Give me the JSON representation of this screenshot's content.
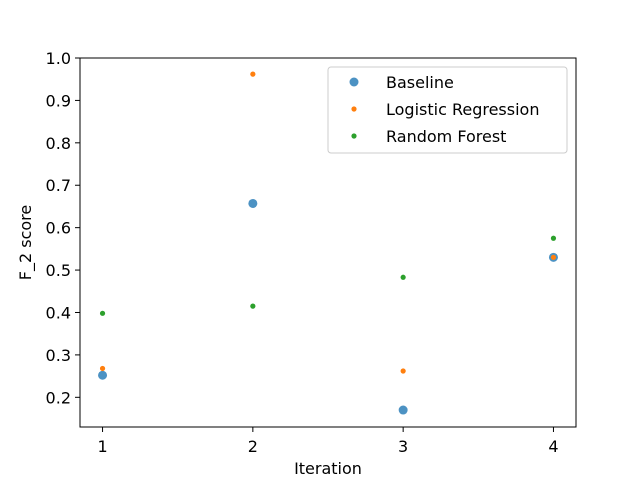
{
  "chart_data": {
    "type": "scatter",
    "xlabel": "Iteration",
    "ylabel": "F_2 score",
    "xlim": [
      0.85,
      4.15
    ],
    "ylim": [
      0.13,
      1.0
    ],
    "xticks": [
      1,
      2,
      3,
      4
    ],
    "yticks": [
      0.2,
      0.3,
      0.4,
      0.5,
      0.6,
      0.7,
      0.8,
      0.9,
      1.0
    ],
    "ytick_labels": [
      "0.2",
      "0.3",
      "0.4",
      "0.5",
      "0.6",
      "0.7",
      "0.8",
      "0.9",
      "1.0"
    ],
    "grid": false,
    "legend_position": "top-right",
    "series": [
      {
        "name": "Baseline",
        "color": "#1f77b4",
        "marker": "large-dot",
        "x": [
          1,
          2,
          3,
          4
        ],
        "y": [
          0.252,
          0.657,
          0.17,
          0.53
        ]
      },
      {
        "name": "Logistic Regression",
        "color": "#ff7f0e",
        "marker": "small-dot",
        "x": [
          1,
          2,
          3,
          4
        ],
        "y": [
          0.268,
          0.962,
          0.262,
          0.53
        ]
      },
      {
        "name": "Random Forest",
        "color": "#2ca02c",
        "marker": "small-dot",
        "x": [
          1,
          2,
          3,
          4
        ],
        "y": [
          0.398,
          0.415,
          0.483,
          0.575
        ]
      }
    ]
  }
}
